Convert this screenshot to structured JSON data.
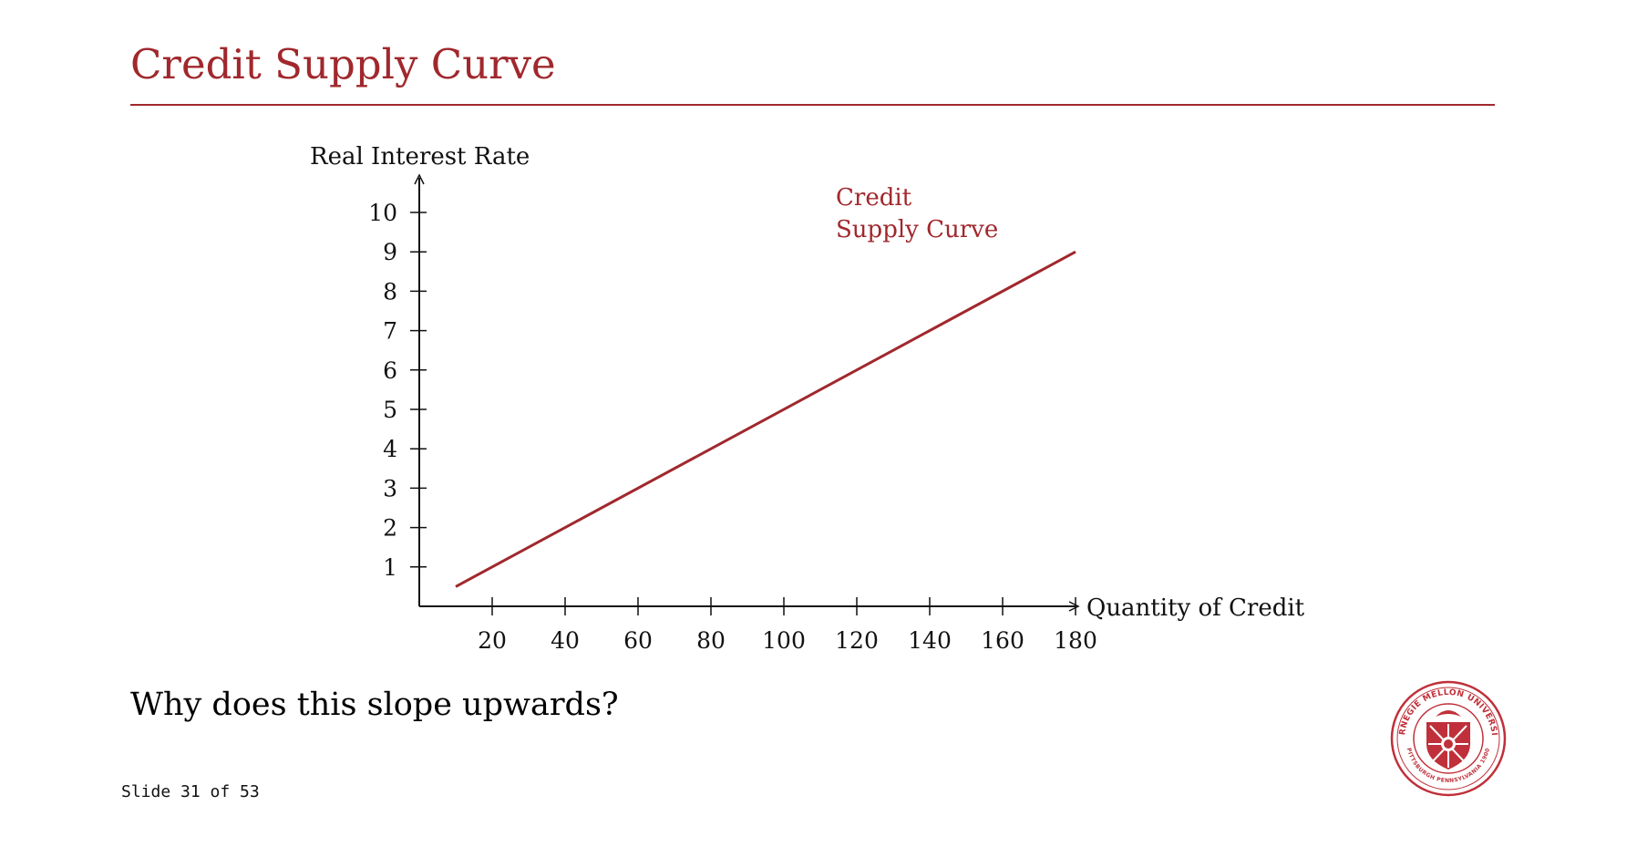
{
  "slide": {
    "title": "Credit Supply Curve",
    "question": "Why does this slope upwards?",
    "footer": "Slide 31 of 53"
  },
  "colors": {
    "accent": "#a0282d",
    "text": "#111111"
  },
  "seal": {
    "icon": "university-seal-icon",
    "text": "CARNEGIE MELLON UNIVERSITY · PITTSBURGH PENNSYLVANIA 1900"
  },
  "chart_data": {
    "type": "line",
    "ylabel": "Real Interest Rate",
    "xlabel": "Quantity of Credit",
    "xlim": [
      0,
      180
    ],
    "ylim": [
      0,
      10
    ],
    "xticks": [
      20,
      40,
      60,
      80,
      100,
      120,
      140,
      160,
      180
    ],
    "yticks": [
      1,
      2,
      3,
      4,
      5,
      6,
      7,
      8,
      9,
      10
    ],
    "grid": false,
    "series": [
      {
        "name_lines": [
          "Credit",
          "Supply Curve"
        ],
        "x": [
          10,
          180
        ],
        "y": [
          0.5,
          9
        ],
        "color": "#a0282d"
      }
    ]
  }
}
